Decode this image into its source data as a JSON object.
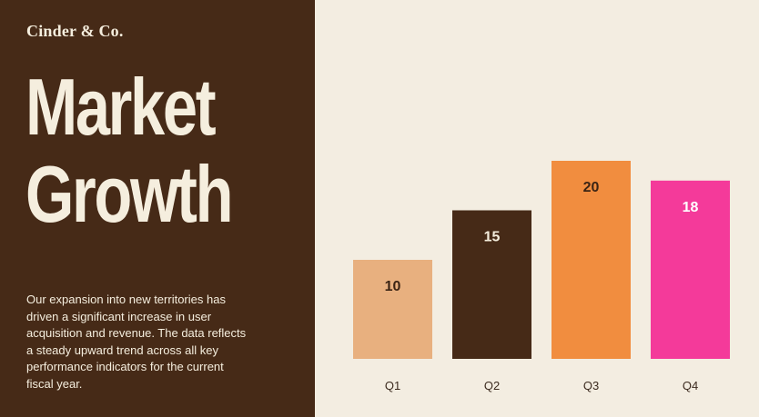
{
  "brand": "Cinder & Co.",
  "title_lines": [
    "Market",
    "Growth"
  ],
  "description": "Our expansion into new territories has driven a significant increase in user acquisition and revenue. The data reflects a steady upward trend across all key performance indicators for the current fiscal year.",
  "chart_data": {
    "type": "bar",
    "title": "",
    "xlabel": "",
    "ylabel": "",
    "categories": [
      "Q1",
      "Q2",
      "Q3",
      "Q4"
    ],
    "values": [
      10,
      15,
      20,
      18
    ],
    "colors": [
      "#e8b07f",
      "#462a17",
      "#f18d3f",
      "#f43a9a"
    ],
    "label_colors": [
      "#3b2414",
      "#f5eede",
      "#3b2414",
      "#ffffff"
    ],
    "ylim": [
      0,
      20
    ],
    "grid": false,
    "legend": "none"
  }
}
